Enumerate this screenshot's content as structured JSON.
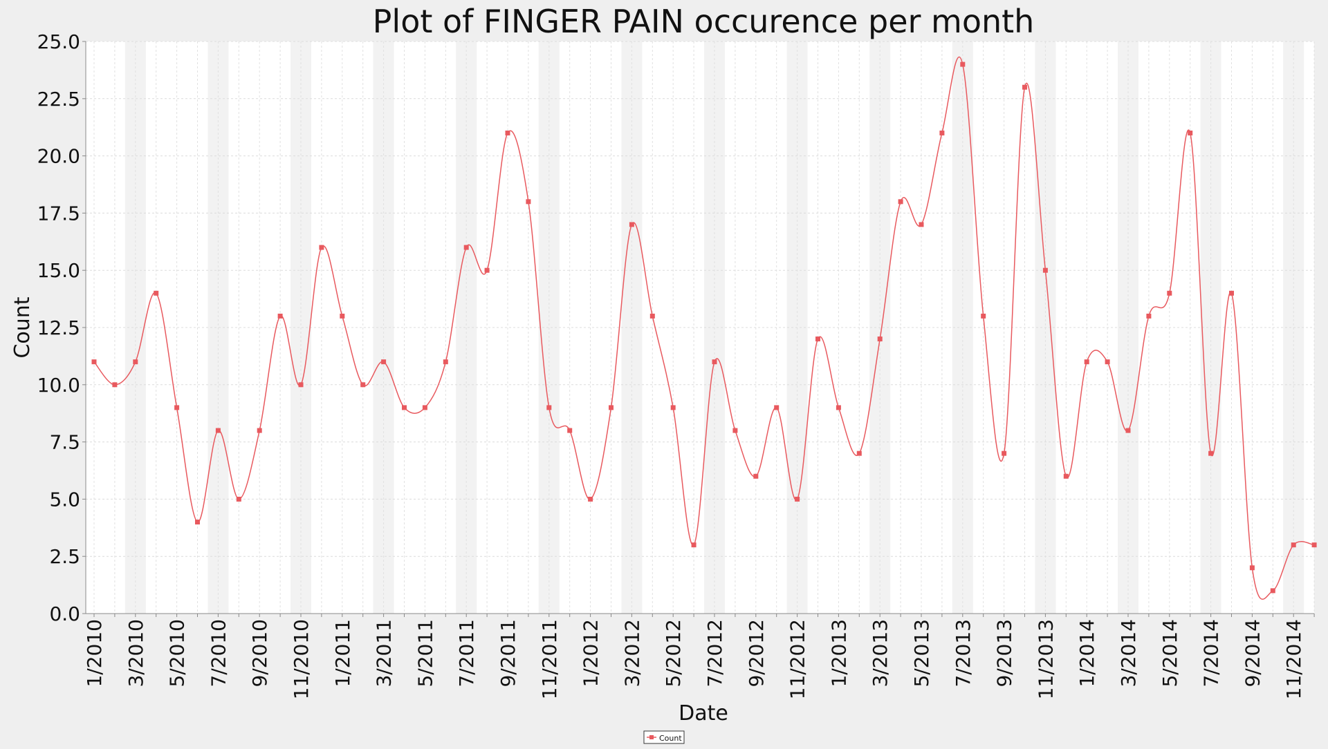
{
  "chart_data": {
    "type": "line",
    "title": "Plot of FINGER PAIN occurence per month",
    "xlabel": "Date",
    "ylabel": "Count",
    "ylim": [
      0,
      25
    ],
    "yticks": [
      "0.0",
      "2.5",
      "5.0",
      "7.5",
      "10.0",
      "12.5",
      "15.0",
      "17.5",
      "20.0",
      "22.5",
      "25.0"
    ],
    "x": [
      "1/2010",
      "2/2010",
      "3/2010",
      "4/2010",
      "5/2010",
      "6/2010",
      "7/2010",
      "8/2010",
      "9/2010",
      "10/2010",
      "11/2010",
      "12/2010",
      "1/2011",
      "2/2011",
      "3/2011",
      "4/2011",
      "5/2011",
      "6/2011",
      "7/2011",
      "8/2011",
      "9/2011",
      "10/2011",
      "11/2011",
      "12/2011",
      "1/2012",
      "2/2012",
      "3/2012",
      "4/2012",
      "5/2012",
      "6/2012",
      "7/2012",
      "8/2012",
      "9/2012",
      "10/2012",
      "11/2012",
      "12/2012",
      "1/2013",
      "2/2013",
      "3/2013",
      "4/2013",
      "5/2013",
      "6/2013",
      "7/2013",
      "8/2013",
      "9/2013",
      "10/2013",
      "11/2013",
      "12/2013",
      "1/2014",
      "2/2014",
      "3/2014",
      "4/2014",
      "5/2014",
      "6/2014",
      "7/2014",
      "8/2014",
      "9/2014",
      "10/2014",
      "11/2014",
      "12/2014"
    ],
    "xtick_labels": [
      "1/2010",
      "3/2010",
      "5/2010",
      "7/2010",
      "9/2010",
      "11/2010",
      "1/2011",
      "3/2011",
      "5/2011",
      "7/2011",
      "9/2011",
      "11/2011",
      "1/2012",
      "3/2012",
      "5/2012",
      "7/2012",
      "9/2012",
      "11/2012",
      "1/2013",
      "3/2013",
      "5/2013",
      "7/2013",
      "9/2013",
      "11/2013",
      "1/2014",
      "3/2014",
      "5/2014",
      "7/2014",
      "9/2014",
      "11/2014"
    ],
    "series": [
      {
        "name": "Count",
        "color": "#e8595e",
        "values": [
          11,
          10,
          11,
          14,
          9,
          4,
          8,
          5,
          8,
          13,
          10,
          16,
          13,
          10,
          11,
          9,
          9,
          11,
          16,
          15,
          21,
          18,
          9,
          8,
          5,
          9,
          17,
          13,
          9,
          3,
          11,
          8,
          6,
          9,
          5,
          12,
          9,
          7,
          12,
          18,
          17,
          21,
          24,
          13,
          7,
          23,
          15,
          6,
          11,
          11,
          8,
          13,
          14,
          21,
          7,
          14,
          2,
          1,
          3,
          3
        ]
      }
    ],
    "grid": true,
    "legend": "bottom-center"
  }
}
